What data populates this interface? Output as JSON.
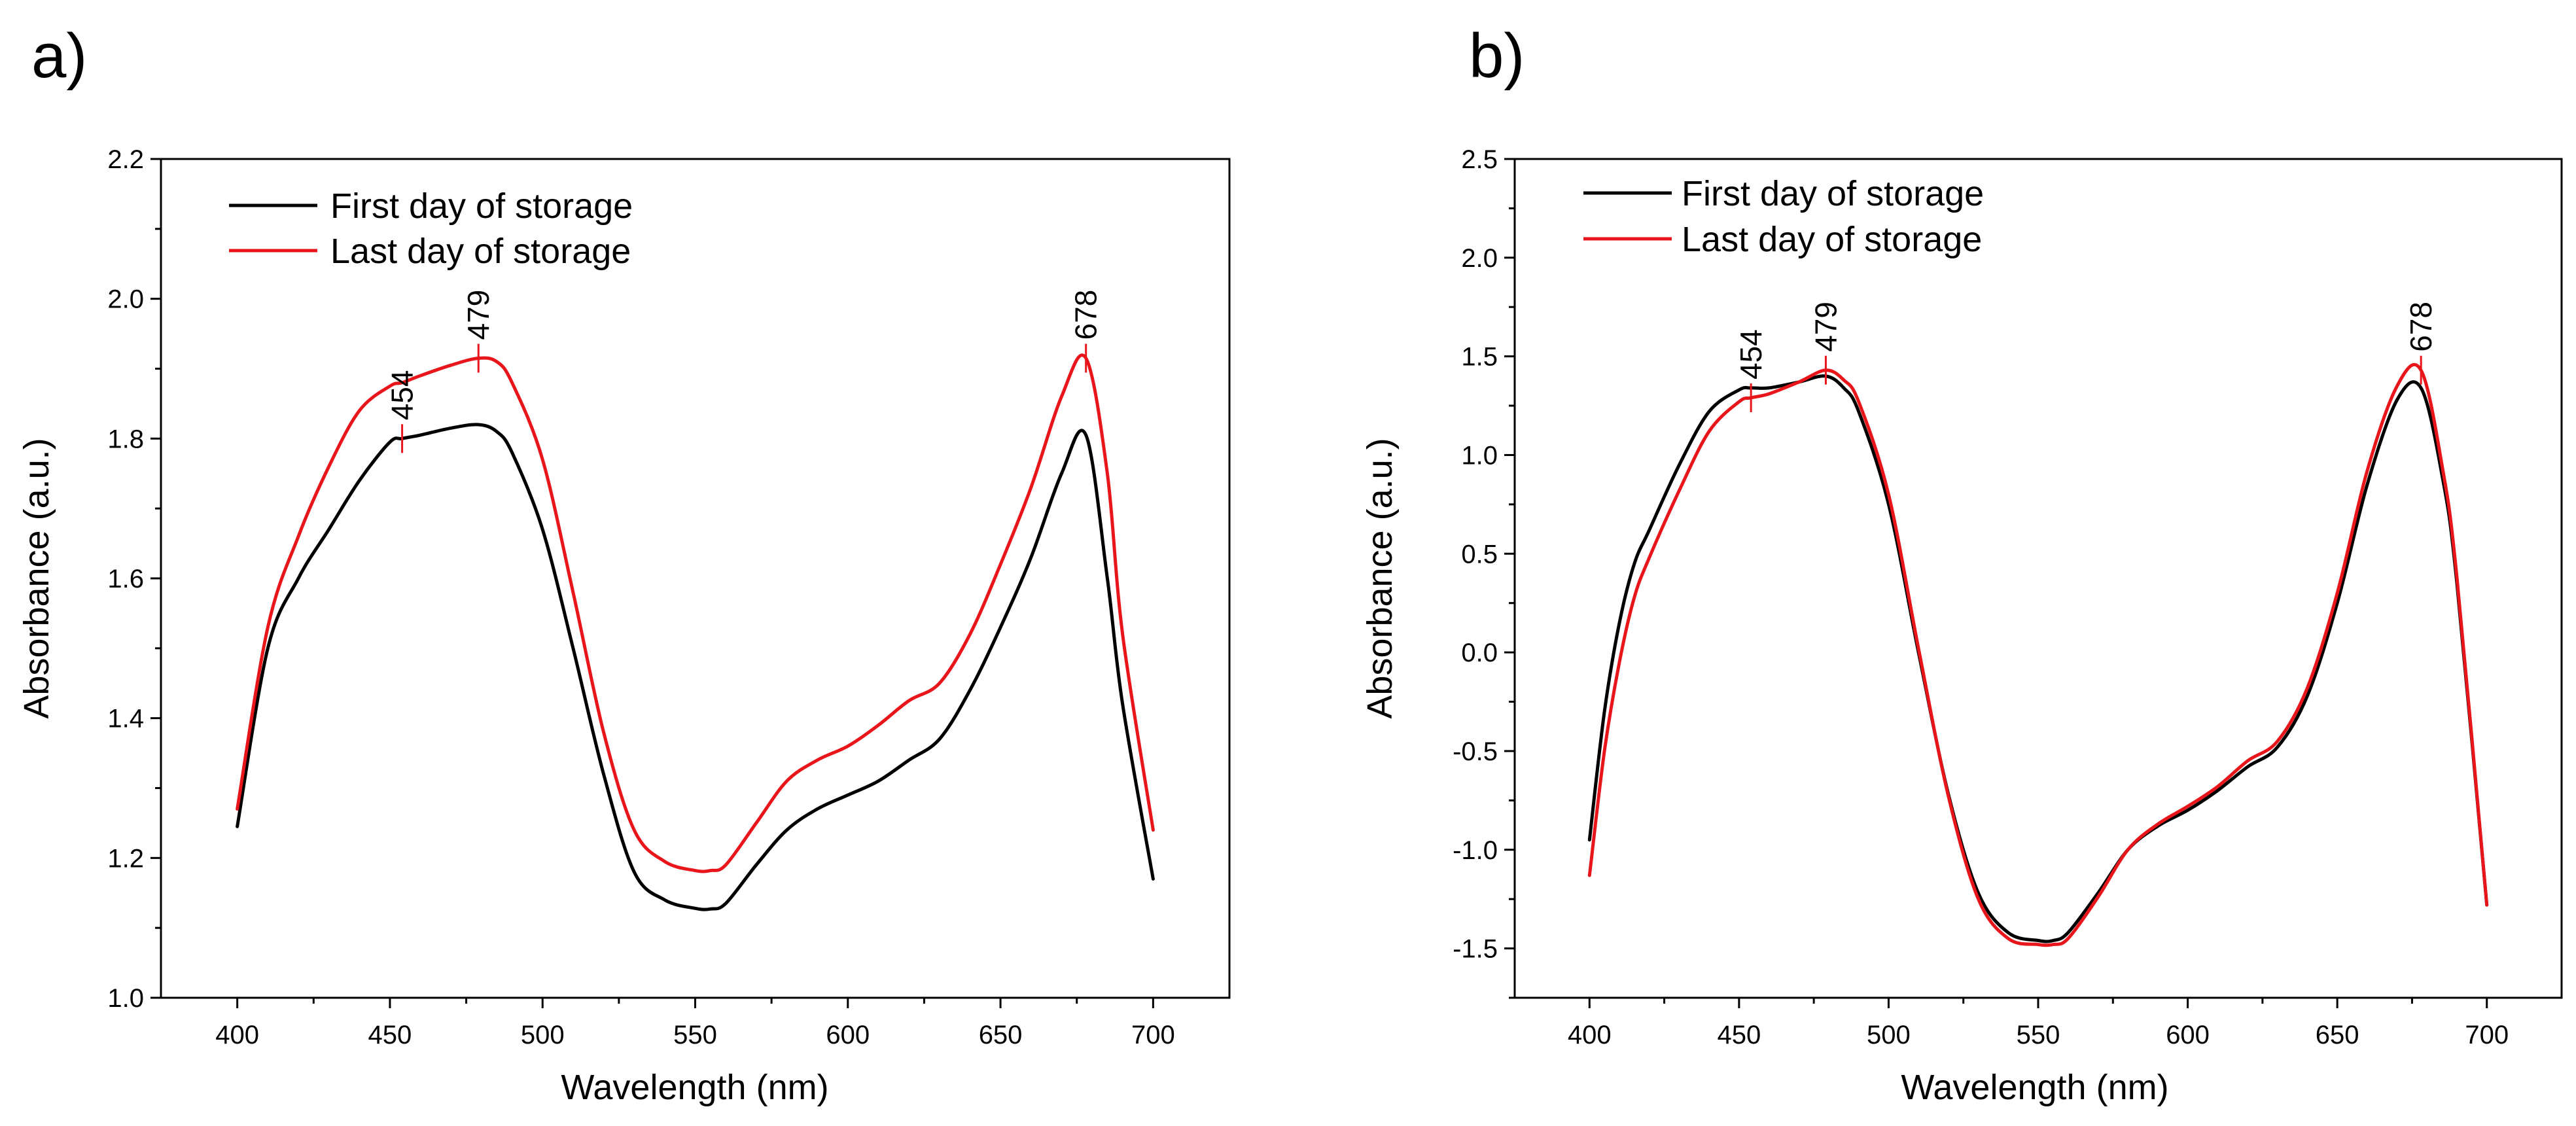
{
  "chart_data": [
    {
      "type": "line",
      "panel_label": "a)",
      "title": "",
      "xlabel": "Wavelength (nm)",
      "ylabel": "Absorbance (a.u.)",
      "xlim": [
        375,
        725
      ],
      "ylim": [
        1.0,
        2.2
      ],
      "xticks": [
        "400",
        "450",
        "500",
        "550",
        "600",
        "650",
        "700"
      ],
      "yticks": [
        "1.0",
        "1.2",
        "1.4",
        "1.6",
        "1.8",
        "2.0",
        "2.2"
      ],
      "legend": {
        "placement": "top-left",
        "entries": [
          "First day of storage",
          "Last day of storage"
        ]
      },
      "series": [
        {
          "name": "First day of storage",
          "color": "#000000",
          "x": [
            400,
            410,
            420,
            430,
            440,
            450,
            454,
            460,
            470,
            479,
            485,
            490,
            500,
            510,
            520,
            530,
            540,
            550,
            555,
            560,
            570,
            580,
            590,
            600,
            610,
            620,
            630,
            640,
            650,
            660,
            670,
            678,
            685,
            690,
            700
          ],
          "y": [
            1.245,
            1.5,
            1.6,
            1.67,
            1.74,
            1.795,
            1.8,
            1.805,
            1.815,
            1.82,
            1.81,
            1.78,
            1.67,
            1.5,
            1.32,
            1.18,
            1.14,
            1.128,
            1.127,
            1.135,
            1.19,
            1.24,
            1.27,
            1.29,
            1.31,
            1.34,
            1.37,
            1.44,
            1.53,
            1.63,
            1.75,
            1.805,
            1.6,
            1.42,
            1.17
          ]
        },
        {
          "name": "Last day of storage",
          "color": "#e8161b",
          "x": [
            400,
            410,
            420,
            430,
            440,
            450,
            454,
            460,
            470,
            479,
            485,
            490,
            500,
            510,
            520,
            530,
            540,
            550,
            555,
            560,
            570,
            580,
            590,
            600,
            610,
            620,
            630,
            640,
            650,
            660,
            670,
            678,
            685,
            690,
            700
          ],
          "y": [
            1.27,
            1.53,
            1.66,
            1.76,
            1.84,
            1.875,
            1.88,
            1.89,
            1.905,
            1.915,
            1.91,
            1.88,
            1.77,
            1.58,
            1.38,
            1.24,
            1.195,
            1.182,
            1.182,
            1.19,
            1.25,
            1.31,
            1.34,
            1.36,
            1.39,
            1.425,
            1.45,
            1.52,
            1.62,
            1.73,
            1.86,
            1.915,
            1.75,
            1.52,
            1.24
          ]
        }
      ],
      "annotations": [
        {
          "text": "454",
          "x": 454,
          "y": 1.8,
          "series": 0
        },
        {
          "text": "479",
          "x": 479,
          "y": 1.915,
          "series": 1
        },
        {
          "text": "678",
          "x": 678,
          "y": 1.915,
          "series": 1
        }
      ]
    },
    {
      "type": "line",
      "panel_label": "b)",
      "title": "",
      "xlabel": "Wavelength (nm)",
      "ylabel": "Absorbance (a.u.)",
      "xlim": [
        375,
        725
      ],
      "ylim": [
        -1.75,
        2.5
      ],
      "xticks": [
        "400",
        "450",
        "500",
        "550",
        "600",
        "650",
        "700"
      ],
      "yticks": [
        "-1.5",
        "-1.0",
        "-0.5",
        "0.0",
        "0.5",
        "1.0",
        "1.5",
        "2.0",
        "2.5"
      ],
      "legend": {
        "placement": "top-left",
        "entries": [
          "First day of storage",
          "Last day of storage"
        ]
      },
      "series": [
        {
          "name": "First day of storage",
          "color": "#000000",
          "x": [
            400,
            405,
            410,
            415,
            420,
            430,
            440,
            450,
            454,
            460,
            470,
            479,
            485,
            490,
            500,
            510,
            520,
            530,
            540,
            550,
            555,
            560,
            570,
            580,
            590,
            600,
            610,
            620,
            630,
            640,
            650,
            660,
            670,
            678,
            685,
            690,
            700
          ],
          "y": [
            -0.95,
            -0.3,
            0.15,
            0.45,
            0.62,
            0.95,
            1.22,
            1.33,
            1.34,
            1.34,
            1.37,
            1.4,
            1.34,
            1.22,
            0.75,
            0.0,
            -0.72,
            -1.22,
            -1.42,
            -1.46,
            -1.46,
            -1.42,
            -1.22,
            -1.0,
            -0.88,
            -0.8,
            -0.7,
            -0.58,
            -0.48,
            -0.22,
            0.25,
            0.85,
            1.28,
            1.34,
            0.9,
            0.35,
            -1.28
          ]
        },
        {
          "name": "Last day of storage",
          "color": "#e8161b",
          "x": [
            400,
            405,
            410,
            415,
            420,
            430,
            440,
            450,
            454,
            460,
            470,
            479,
            485,
            490,
            500,
            510,
            520,
            530,
            540,
            550,
            555,
            560,
            570,
            580,
            590,
            600,
            610,
            620,
            630,
            640,
            650,
            660,
            670,
            678,
            685,
            690,
            700
          ],
          "y": [
            -1.13,
            -0.5,
            -0.05,
            0.28,
            0.48,
            0.82,
            1.12,
            1.27,
            1.29,
            1.31,
            1.37,
            1.43,
            1.38,
            1.27,
            0.8,
            0.02,
            -0.73,
            -1.25,
            -1.45,
            -1.48,
            -1.48,
            -1.45,
            -1.24,
            -1.0,
            -0.87,
            -0.78,
            -0.68,
            -0.55,
            -0.45,
            -0.18,
            0.3,
            0.92,
            1.35,
            1.43,
            0.95,
            0.38,
            -1.28
          ]
        }
      ],
      "annotations": [
        {
          "text": "454",
          "x": 454,
          "y": 1.29,
          "series": 1
        },
        {
          "text": "479",
          "x": 479,
          "y": 1.43,
          "series": 1
        },
        {
          "text": "678",
          "x": 678,
          "y": 1.43,
          "series": 1
        }
      ]
    }
  ]
}
